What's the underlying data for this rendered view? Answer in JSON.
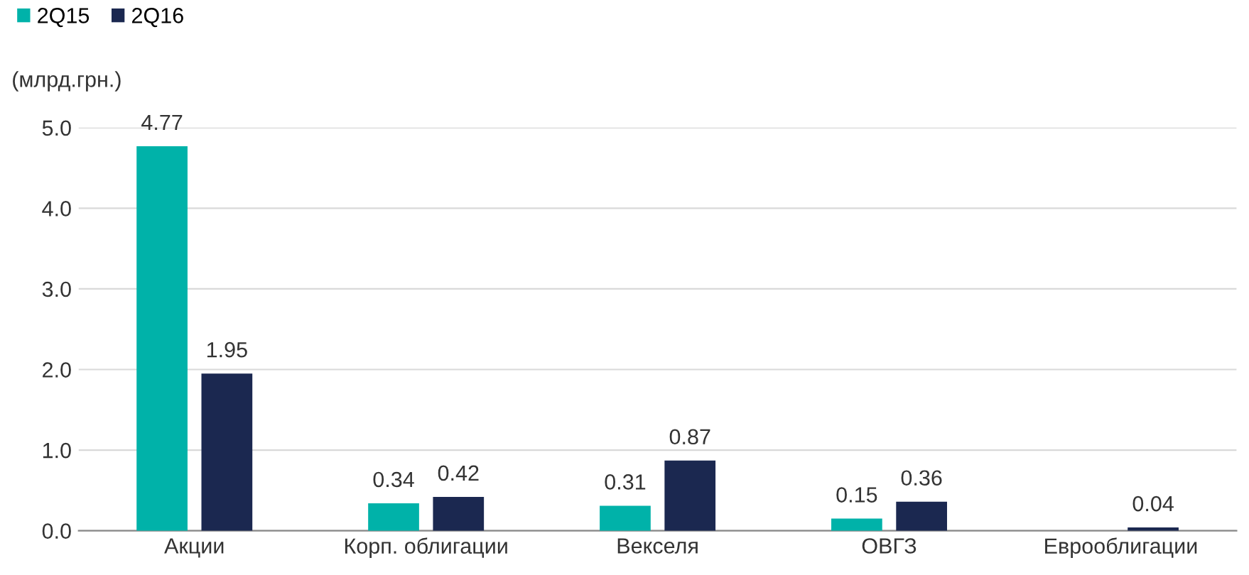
{
  "chart_data": {
    "type": "bar",
    "ylabel": "(млрд.грн.)",
    "categories": [
      "Акции",
      "Корп. облигации",
      "Векселя",
      "ОВГЗ",
      "Еврооблигации"
    ],
    "series": [
      {
        "name": "2Q15",
        "color": "#00b2a9",
        "values": [
          4.77,
          0.34,
          0.31,
          0.15,
          null
        ]
      },
      {
        "name": "2Q16",
        "color": "#1b2850",
        "values": [
          1.95,
          0.42,
          0.87,
          0.36,
          0.04
        ]
      }
    ],
    "ylim": [
      0,
      5.0
    ],
    "yticks": [
      {
        "value": 0,
        "label": "0.0"
      },
      {
        "value": 1,
        "label": "1.0"
      },
      {
        "value": 2,
        "label": "2.0"
      },
      {
        "value": 3,
        "label": "3.0"
      },
      {
        "value": 4,
        "label": "4.0"
      },
      {
        "value": 5,
        "label": "5.0"
      }
    ],
    "grid": "y",
    "legend": "top left",
    "data_labels": true
  }
}
